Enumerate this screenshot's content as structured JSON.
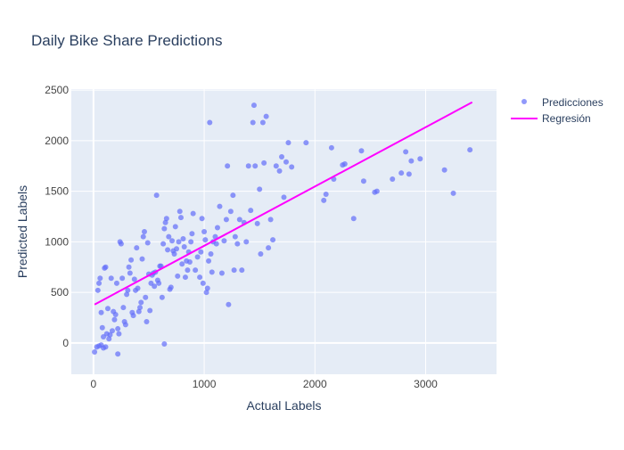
{
  "chart_data": {
    "type": "scatter",
    "title": "Daily Bike Share Predictions",
    "xlabel": "Actual Labels",
    "ylabel": "Predicted Labels",
    "xlim": [
      -200,
      3640
    ],
    "ylim": [
      -310,
      2510
    ],
    "xticks": [
      0,
      1000,
      2000,
      3000
    ],
    "yticks": [
      0,
      500,
      1000,
      1500,
      2000,
      2500
    ],
    "grid": true,
    "legend_position": "top-right",
    "colors": {
      "plot_bg": "#e5ecf6",
      "grid": "#ffffff",
      "points": "#636efa",
      "line": "#ff00ff",
      "text": "#2a3f5f",
      "tick_text": "#444444"
    },
    "series": [
      {
        "name": "Predicciones",
        "mode": "markers",
        "points": [
          [
            10,
            -90
          ],
          [
            30,
            -40
          ],
          [
            50,
            -30
          ],
          [
            70,
            -20
          ],
          [
            90,
            -50
          ],
          [
            110,
            -40
          ],
          [
            220,
            -110
          ],
          [
            640,
            -10
          ],
          [
            40,
            520
          ],
          [
            50,
            590
          ],
          [
            60,
            640
          ],
          [
            70,
            300
          ],
          [
            80,
            150
          ],
          [
            90,
            60
          ],
          [
            100,
            740
          ],
          [
            110,
            750
          ],
          [
            120,
            90
          ],
          [
            130,
            340
          ],
          [
            140,
            40
          ],
          [
            150,
            80
          ],
          [
            160,
            640
          ],
          [
            170,
            120
          ],
          [
            180,
            310
          ],
          [
            190,
            230
          ],
          [
            200,
            280
          ],
          [
            210,
            590
          ],
          [
            220,
            140
          ],
          [
            230,
            90
          ],
          [
            240,
            1000
          ],
          [
            250,
            980
          ],
          [
            260,
            640
          ],
          [
            270,
            350
          ],
          [
            280,
            210
          ],
          [
            290,
            180
          ],
          [
            300,
            480
          ],
          [
            310,
            520
          ],
          [
            320,
            750
          ],
          [
            330,
            690
          ],
          [
            340,
            820
          ],
          [
            350,
            300
          ],
          [
            360,
            270
          ],
          [
            370,
            630
          ],
          [
            380,
            520
          ],
          [
            390,
            940
          ],
          [
            400,
            540
          ],
          [
            410,
            310
          ],
          [
            420,
            350
          ],
          [
            430,
            400
          ],
          [
            440,
            830
          ],
          [
            450,
            1050
          ],
          [
            460,
            1100
          ],
          [
            470,
            450
          ],
          [
            480,
            210
          ],
          [
            490,
            990
          ],
          [
            500,
            680
          ],
          [
            510,
            320
          ],
          [
            520,
            590
          ],
          [
            530,
            670
          ],
          [
            540,
            690
          ],
          [
            550,
            560
          ],
          [
            560,
            700
          ],
          [
            570,
            1460
          ],
          [
            580,
            620
          ],
          [
            590,
            590
          ],
          [
            600,
            760
          ],
          [
            610,
            760
          ],
          [
            620,
            450
          ],
          [
            630,
            980
          ],
          [
            640,
            1130
          ],
          [
            650,
            1190
          ],
          [
            660,
            1230
          ],
          [
            670,
            920
          ],
          [
            680,
            1050
          ],
          [
            690,
            530
          ],
          [
            700,
            550
          ],
          [
            710,
            1010
          ],
          [
            720,
            910
          ],
          [
            730,
            880
          ],
          [
            740,
            1150
          ],
          [
            750,
            930
          ],
          [
            760,
            660
          ],
          [
            770,
            1000
          ],
          [
            780,
            1300
          ],
          [
            790,
            1240
          ],
          [
            800,
            780
          ],
          [
            810,
            1030
          ],
          [
            820,
            950
          ],
          [
            830,
            650
          ],
          [
            840,
            810
          ],
          [
            850,
            720
          ],
          [
            860,
            900
          ],
          [
            870,
            800
          ],
          [
            880,
            1000
          ],
          [
            890,
            1080
          ],
          [
            900,
            1280
          ],
          [
            920,
            720
          ],
          [
            940,
            850
          ],
          [
            960,
            650
          ],
          [
            970,
            900
          ],
          [
            980,
            1230
          ],
          [
            990,
            590
          ],
          [
            1000,
            1100
          ],
          [
            1010,
            1020
          ],
          [
            1020,
            500
          ],
          [
            1030,
            540
          ],
          [
            1040,
            810
          ],
          [
            1050,
            2180
          ],
          [
            1060,
            880
          ],
          [
            1070,
            700
          ],
          [
            1080,
            1000
          ],
          [
            1100,
            1050
          ],
          [
            1110,
            980
          ],
          [
            1120,
            1140
          ],
          [
            1140,
            1350
          ],
          [
            1160,
            690
          ],
          [
            1180,
            1010
          ],
          [
            1200,
            1220
          ],
          [
            1210,
            1750
          ],
          [
            1220,
            380
          ],
          [
            1240,
            1300
          ],
          [
            1260,
            1460
          ],
          [
            1270,
            720
          ],
          [
            1280,
            1050
          ],
          [
            1300,
            980
          ],
          [
            1320,
            1220
          ],
          [
            1340,
            720
          ],
          [
            1360,
            1190
          ],
          [
            1380,
            1000
          ],
          [
            1400,
            1750
          ],
          [
            1420,
            1310
          ],
          [
            1440,
            2180
          ],
          [
            1450,
            2350
          ],
          [
            1460,
            1750
          ],
          [
            1480,
            1180
          ],
          [
            1500,
            1520
          ],
          [
            1510,
            880
          ],
          [
            1530,
            2180
          ],
          [
            1540,
            1780
          ],
          [
            1560,
            2240
          ],
          [
            1580,
            940
          ],
          [
            1600,
            1220
          ],
          [
            1620,
            1020
          ],
          [
            1650,
            1750
          ],
          [
            1680,
            1700
          ],
          [
            1700,
            1840
          ],
          [
            1720,
            1440
          ],
          [
            1740,
            1790
          ],
          [
            1760,
            1980
          ],
          [
            1790,
            1740
          ],
          [
            1920,
            1980
          ],
          [
            2080,
            1410
          ],
          [
            2100,
            1470
          ],
          [
            2150,
            1930
          ],
          [
            2170,
            1620
          ],
          [
            2250,
            1760
          ],
          [
            2270,
            1770
          ],
          [
            2350,
            1230
          ],
          [
            2420,
            1900
          ],
          [
            2440,
            1600
          ],
          [
            2540,
            1490
          ],
          [
            2560,
            1500
          ],
          [
            2700,
            1620
          ],
          [
            2780,
            1680
          ],
          [
            2820,
            1890
          ],
          [
            2850,
            1670
          ],
          [
            2870,
            1800
          ],
          [
            2950,
            1820
          ],
          [
            3170,
            1710
          ],
          [
            3250,
            1480
          ],
          [
            3400,
            1910
          ]
        ]
      },
      {
        "name": "Regresión",
        "mode": "lines",
        "points": [
          [
            10,
            380
          ],
          [
            3420,
            2380
          ]
        ]
      }
    ]
  }
}
